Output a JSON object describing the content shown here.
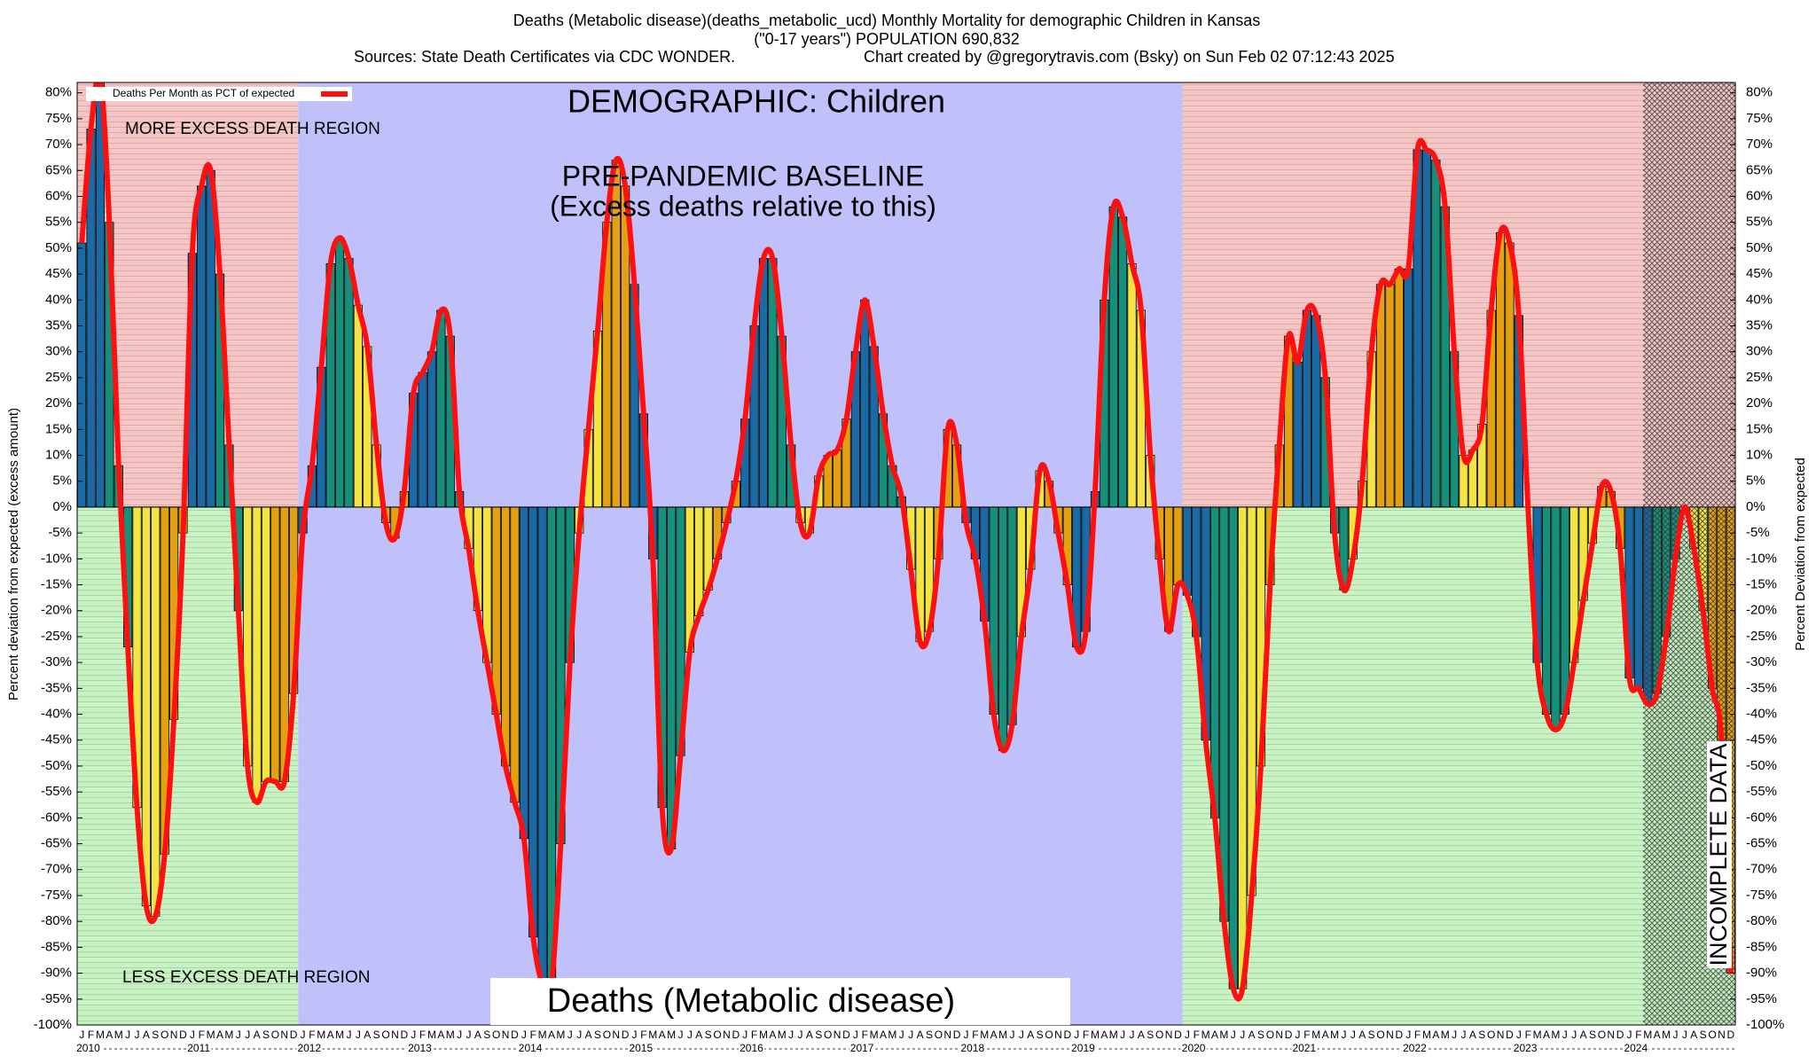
{
  "chart_data": {
    "type": "bar",
    "title": "Deaths (Metabolic disease)(deaths_metabolic_ucd) Monthly Mortality for demographic Children in Kansas",
    "subtitle": "(\"0-17 years\") POPULATION 690,832",
    "sources": "Sources: State Death Certificates via CDC WONDER.",
    "credit": "Chart created by @gregorytravis.com (Bsky) on Sun Feb 02 07:12:43 2025",
    "ylabel": "Percent deviation from expected (excess amount)",
    "y2label": "Percent Deviation from expected",
    "annotations": {
      "more": "MORE EXCESS DEATH REGION",
      "less": "LESS EXCESS DEATH REGION",
      "demographic": "DEMOGRAPHIC: Children",
      "baseline": "PRE-PANDEMIC BASELINE",
      "baseline_note": "(Excess deaths relative to this)",
      "cause": "Deaths (Metabolic disease)",
      "incomplete": "INCOMPLETE DATA"
    },
    "categories": [
      "J",
      "F",
      "M",
      "A",
      "M",
      "J",
      "J",
      "A",
      "S",
      "O",
      "N",
      "D",
      "J",
      "F",
      "M",
      "A",
      "M",
      "J",
      "J",
      "A",
      "S",
      "O",
      "N",
      "D",
      "J",
      "F",
      "M",
      "A",
      "M",
      "J",
      "J",
      "A",
      "S",
      "O",
      "N",
      "D",
      "J",
      "F",
      "M",
      "A",
      "M",
      "J",
      "J",
      "A",
      "S",
      "O",
      "N",
      "D",
      "J",
      "F",
      "M",
      "A",
      "M",
      "J",
      "J",
      "A",
      "S",
      "O",
      "N",
      "D",
      "J",
      "F",
      "M",
      "A",
      "M",
      "J",
      "J",
      "A",
      "S",
      "O",
      "N",
      "D",
      "J",
      "F",
      "M",
      "A",
      "M",
      "J",
      "J",
      "A",
      "S",
      "O",
      "N",
      "D",
      "J",
      "F",
      "M",
      "A",
      "M",
      "J",
      "J",
      "A",
      "S",
      "O",
      "N",
      "D",
      "J",
      "F",
      "M",
      "A",
      "M",
      "J",
      "J",
      "A",
      "S",
      "O",
      "N",
      "D",
      "J",
      "F",
      "M",
      "A",
      "M",
      "J",
      "J",
      "A",
      "S",
      "O",
      "N",
      "D",
      "J",
      "F",
      "M",
      "A",
      "M",
      "J",
      "J",
      "A",
      "S",
      "O",
      "N",
      "D",
      "J",
      "F",
      "M",
      "A",
      "M",
      "J",
      "J",
      "A",
      "S",
      "O",
      "N",
      "D",
      "J",
      "F",
      "M",
      "A",
      "M",
      "J",
      "J",
      "A",
      "S",
      "O",
      "N",
      "D",
      "J",
      "F",
      "M",
      "A",
      "M",
      "J",
      "J",
      "A",
      "S",
      "O",
      "N",
      "D",
      "J",
      "F",
      "M",
      "A",
      "M",
      "J",
      "J",
      "A",
      "S",
      "O",
      "N",
      "D"
    ],
    "years": [
      "2010",
      "2011",
      "2012",
      "2013",
      "2014",
      "2015",
      "2016",
      "2017",
      "2018",
      "2019",
      "2020",
      "2021",
      "2022",
      "2023",
      "2024"
    ],
    "bar_colors": [
      "#1b6aa5",
      "#16907a",
      "#f3e443",
      "#e3a012"
    ],
    "series": [
      {
        "name": "Deaths Per Month as PCT of expected",
        "color": "#ff1010",
        "values": [
          51,
          73,
          83,
          55,
          8,
          -27,
          -58,
          -77,
          -79,
          -67,
          -41,
          -5,
          49,
          62,
          65,
          45,
          12,
          -20,
          -50,
          -57,
          -53,
          -53,
          -53,
          -36,
          -5,
          8,
          27,
          47,
          52,
          48,
          39,
          31,
          12,
          -3,
          -6,
          3,
          22,
          26,
          30,
          38,
          33,
          3,
          -8,
          -20,
          -30,
          -40,
          -50,
          -57,
          -64,
          -83,
          -92,
          -92,
          -65,
          -30,
          -5,
          15,
          34,
          55,
          67,
          62,
          43,
          18,
          -10,
          -58,
          -66,
          -48,
          -28,
          -21,
          -16,
          -10,
          -3,
          5,
          17,
          35,
          48,
          48,
          33,
          12,
          -3,
          -5,
          6,
          10,
          11,
          17,
          30,
          40,
          31,
          18,
          8,
          2,
          -12,
          -26,
          -24,
          -10,
          15,
          12,
          -3,
          -10,
          -22,
          -40,
          -47,
          -42,
          -25,
          -12,
          7,
          5,
          -5,
          -15,
          -27,
          -24,
          3,
          40,
          58,
          56,
          47,
          38,
          10,
          -10,
          -24,
          -15,
          -17,
          -25,
          -45,
          -60,
          -80,
          -93,
          -93,
          -75,
          -50,
          -15,
          12,
          33,
          28,
          38,
          37,
          25,
          -5,
          -16,
          -10,
          5,
          30,
          43,
          43,
          46,
          46,
          69,
          69,
          67,
          58,
          30,
          10,
          11,
          16,
          38,
          53,
          51,
          37,
          0,
          -30,
          -40,
          -43,
          -40,
          -30,
          -18,
          -7,
          4,
          3,
          -8,
          -33,
          -35,
          -38,
          -36,
          -25,
          -10,
          0,
          -8,
          -20,
          -35,
          -45,
          -90
        ]
      }
    ],
    "ylim": [
      -100,
      82
    ],
    "yticks": [
      {
        "value": -100,
        "label": "-100%"
      },
      {
        "value": -95,
        "label": "-95%"
      },
      {
        "value": -90,
        "label": "-90%"
      },
      {
        "value": -85,
        "label": "-85%"
      },
      {
        "value": -80,
        "label": "-80%"
      },
      {
        "value": -75,
        "label": "-75%"
      },
      {
        "value": -70,
        "label": "-70%"
      },
      {
        "value": -65,
        "label": "-65%"
      },
      {
        "value": -60,
        "label": "-60%"
      },
      {
        "value": -55,
        "label": "-55%"
      },
      {
        "value": -50,
        "label": "-50%"
      },
      {
        "value": -45,
        "label": "-45%"
      },
      {
        "value": -40,
        "label": "-40%"
      },
      {
        "value": -35,
        "label": "-35%"
      },
      {
        "value": -30,
        "label": "-30%"
      },
      {
        "value": -25,
        "label": "-25%"
      },
      {
        "value": -20,
        "label": "-20%"
      },
      {
        "value": -15,
        "label": "-15%"
      },
      {
        "value": -10,
        "label": "-10%"
      },
      {
        "value": -5,
        "label": "-5%"
      },
      {
        "value": 0,
        "label": "0%"
      },
      {
        "value": 5,
        "label": "5%"
      },
      {
        "value": 10,
        "label": "10%"
      },
      {
        "value": 15,
        "label": "15%"
      },
      {
        "value": 20,
        "label": "20%"
      },
      {
        "value": 25,
        "label": "25%"
      },
      {
        "value": 30,
        "label": "30%"
      },
      {
        "value": 35,
        "label": "35%"
      },
      {
        "value": 40,
        "label": "40%"
      },
      {
        "value": 45,
        "label": "45%"
      },
      {
        "value": 50,
        "label": "50%"
      },
      {
        "value": 55,
        "label": "55%"
      },
      {
        "value": 60,
        "label": "60%"
      },
      {
        "value": 65,
        "label": "65%"
      },
      {
        "value": 70,
        "label": "70%"
      },
      {
        "value": 75,
        "label": "75%"
      },
      {
        "value": 80,
        "label": "80%"
      }
    ]
  }
}
